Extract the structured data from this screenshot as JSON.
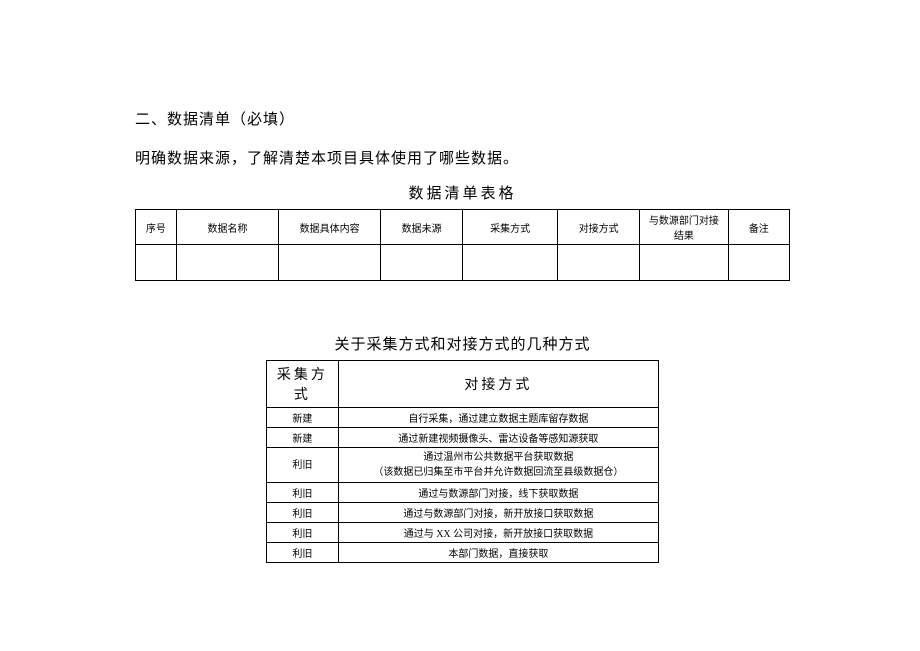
{
  "section": {
    "heading": "二、数据清单（必填）",
    "desc": "明确数据来源，了解清楚本项目具体使用了哪些数据。"
  },
  "mainTable": {
    "title": "数据清单表格",
    "headers": [
      "序号",
      "数据名称",
      "数据具体内容",
      "数据未源",
      "采集方式",
      "对接方式",
      "与数源部门对接结果",
      "备注"
    ]
  },
  "subTable": {
    "title": "关于采集方式和对接方式的几种方式",
    "headers": [
      "采集方式",
      "对接方式"
    ],
    "rows": [
      {
        "col1": "新建",
        "col2": "自行采集，通过建立数据主题库留存数据"
      },
      {
        "col1": "新建",
        "col2": "通过新建视频摄像头、雷达设备等感知源获取"
      },
      {
        "col1": "利旧",
        "col2_line1": "通过温州市公共数据平台获取数据",
        "col2_line2": "（该数据已归集至市平台并允许数据回流至县级数据仓）",
        "merged": true
      },
      {
        "col1": "利旧",
        "col2": "通过与数源部门对接，线下获取数据"
      },
      {
        "col1": "利旧",
        "col2": "通过与数源部门对接，新开放接口获取数据"
      },
      {
        "col1": "利旧",
        "col2": "通过与 XX 公司对接，新开放接口获取数据"
      },
      {
        "col1": "利旧",
        "col2": "本部门数据，直接获取"
      }
    ]
  },
  "styling": {
    "background": "#ffffff",
    "text_color": "#000000",
    "border_color": "#000000",
    "heading_fontsize": 15,
    "table_header_fontsize": 10,
    "subtable_header_fontsize": 14,
    "subtable_cell_fontsize": 10
  }
}
